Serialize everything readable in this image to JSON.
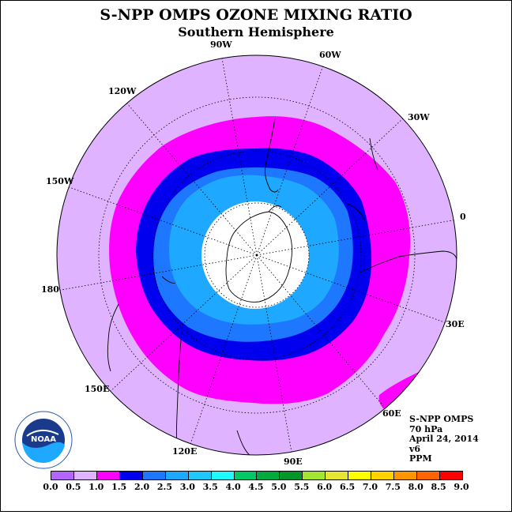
{
  "title": "S-NPP OMPS OZONE MIXING RATIO",
  "subtitle": "Southern Hemisphere",
  "map": {
    "projection": "polar stereographic, south pole",
    "longitude_labels": [
      "90W",
      "60W",
      "30W",
      "0",
      "30E",
      "60E",
      "90E",
      "120E",
      "150E",
      "180",
      "150W",
      "120W"
    ],
    "colors": {
      "outer": "#dfb3ff",
      "ring_magenta": "#ff00ff",
      "band_blue": "#0000ee",
      "band_mid": "#1e78ff",
      "band_light": "#1ea8ff",
      "polar_hole": "#ffffff"
    }
  },
  "info": {
    "line1": "S-NPP OMPS",
    "line2": "70 hPa",
    "line3": "April 24, 2014",
    "line4": "v6",
    "line5": "PPM"
  },
  "logo": {
    "text": "NOAA",
    "ring_text": "NATIONAL OCEANIC AND ATMOSPHERIC ADMINISTRATION · U.S. DEPARTMENT OF COMMERCE"
  },
  "colorbar": {
    "ticks": [
      "0.0",
      "0.5",
      "1.0",
      "1.5",
      "2.0",
      "2.5",
      "3.0",
      "3.5",
      "4.0",
      "4.5",
      "5.0",
      "5.5",
      "6.0",
      "6.5",
      "7.0",
      "7.5",
      "8.0",
      "8.5",
      "9.0"
    ],
    "colors": [
      "#b266ff",
      "#dfb3ff",
      "#ff00ff",
      "#0000ee",
      "#1e78ff",
      "#1ea8ff",
      "#1ec8ff",
      "#1efaff",
      "#00c864",
      "#00aa3c",
      "#009628",
      "#a0e632",
      "#e6e632",
      "#ffff00",
      "#ffd200",
      "#ff9600",
      "#ff6400",
      "#ff0000",
      "#8b5a3c"
    ]
  }
}
